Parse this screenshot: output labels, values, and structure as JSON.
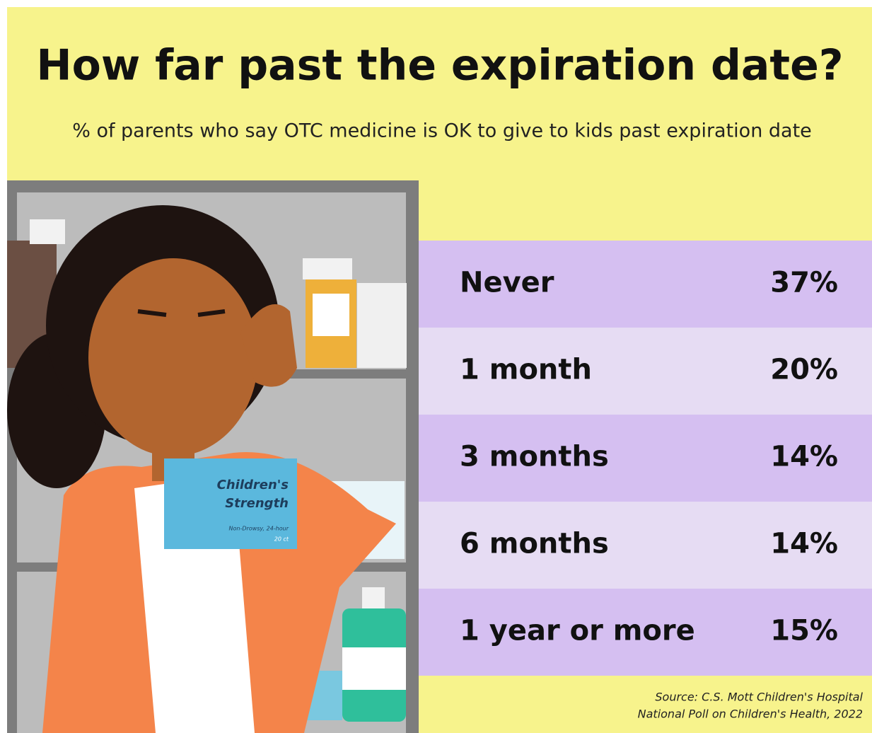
{
  "header": {
    "title": "How far past the expiration date?",
    "subtitle": "% of parents who say OTC medicine is OK to give to kids past expiration date"
  },
  "table": {
    "rows": [
      [
        "Never",
        "37%"
      ],
      [
        "1 month",
        "20%"
      ],
      [
        "3 months",
        "14%"
      ],
      [
        "6 months",
        "14%"
      ],
      [
        "1 year or more",
        "15%"
      ]
    ]
  },
  "illustration": {
    "box_name": [
      "Children's",
      "Strength"
    ],
    "box_note": "Non-Drowsy, 24-hour",
    "box_count": "20 ct"
  },
  "source": [
    "Source: C.S. Mott Children's Hospital",
    "National Poll on Children's Health, 2022"
  ]
}
